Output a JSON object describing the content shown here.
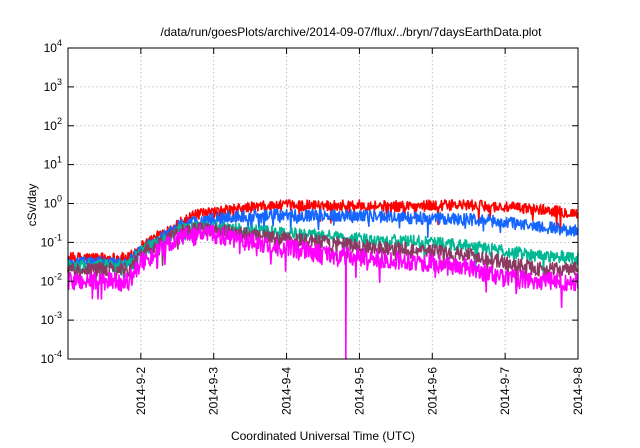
{
  "chart_data": {
    "type": "line",
    "title": "/data/run/goesPlots/archive/2014-09-07/flux/../bryn/7daysEarthData.plot",
    "xlabel": "Coordinated Universal Time (UTC)",
    "ylabel": "cSv/day",
    "y_scale": "log",
    "ylim": [
      0.0001,
      10000
    ],
    "xlim": [
      "2014-09-01T00:00",
      "2014-09-08T00:00"
    ],
    "x_tick_labels": [
      "2014-9-2",
      "2014-9-3",
      "2014-9-4",
      "2014-9-5",
      "2014-9-6",
      "2014-9-7",
      "2014-9-8"
    ],
    "x_tick_values": [
      "2014-09-02",
      "2014-09-03",
      "2014-09-04",
      "2014-09-05",
      "2014-09-06",
      "2014-09-07",
      "2014-09-08"
    ],
    "y_ticks": [
      {
        "value": 0.0001,
        "base": "10",
        "exp": "-4"
      },
      {
        "value": 0.001,
        "base": "10",
        "exp": "-3"
      },
      {
        "value": 0.01,
        "base": "10",
        "exp": "-2"
      },
      {
        "value": 0.1,
        "base": "10",
        "exp": "-1"
      },
      {
        "value": 1,
        "base": "10",
        "exp": "0"
      },
      {
        "value": 10,
        "base": "10",
        "exp": "1"
      },
      {
        "value": 100,
        "base": "10",
        "exp": "2"
      },
      {
        "value": 1000,
        "base": "10",
        "exp": "3"
      },
      {
        "value": 10000,
        "base": "10",
        "exp": "4"
      }
    ],
    "grid": true,
    "legend": "none",
    "series": [
      {
        "color": "#ff0000",
        "x": [
          "2014-09-01T00:00",
          "2014-09-01T12:00",
          "2014-09-01T20:00",
          "2014-09-02T00:00",
          "2014-09-02T06:00",
          "2014-09-02T12:00",
          "2014-09-02T18:00",
          "2014-09-03T00:00",
          "2014-09-03T06:00",
          "2014-09-03T12:00",
          "2014-09-04T00:00",
          "2014-09-04T12:00",
          "2014-09-05T00:00",
          "2014-09-05T12:00",
          "2014-09-06T00:00",
          "2014-09-06T12:00",
          "2014-09-07T00:00",
          "2014-09-07T12:00",
          "2014-09-08T00:00"
        ],
        "y": [
          0.04,
          0.04,
          0.04,
          0.08,
          0.15,
          0.3,
          0.5,
          0.6,
          0.7,
          0.8,
          0.9,
          0.9,
          0.9,
          0.85,
          0.9,
          0.9,
          0.8,
          0.7,
          0.55
        ]
      },
      {
        "color": "#1565ff",
        "x": [
          "2014-09-01T00:00",
          "2014-09-01T12:00",
          "2014-09-01T20:00",
          "2014-09-02T00:00",
          "2014-09-02T06:00",
          "2014-09-02T12:00",
          "2014-09-02T18:00",
          "2014-09-03T00:00",
          "2014-09-03T06:00",
          "2014-09-03T12:00",
          "2014-09-04T00:00",
          "2014-09-04T12:00",
          "2014-09-05T00:00",
          "2014-09-05T12:00",
          "2014-09-06T00:00",
          "2014-09-06T12:00",
          "2014-09-07T00:00",
          "2014-09-07T12:00",
          "2014-09-08T00:00"
        ],
        "y": [
          0.03,
          0.03,
          0.03,
          0.07,
          0.12,
          0.25,
          0.35,
          0.4,
          0.45,
          0.5,
          0.5,
          0.5,
          0.5,
          0.45,
          0.4,
          0.4,
          0.33,
          0.25,
          0.2
        ]
      },
      {
        "color": "#00b894",
        "x": [
          "2014-09-01T00:00",
          "2014-09-01T12:00",
          "2014-09-01T20:00",
          "2014-09-02T00:00",
          "2014-09-02T06:00",
          "2014-09-02T12:00",
          "2014-09-02T18:00",
          "2014-09-03T00:00",
          "2014-09-03T06:00",
          "2014-09-03T12:00",
          "2014-09-04T00:00",
          "2014-09-04T12:00",
          "2014-09-05T00:00",
          "2014-09-05T12:00",
          "2014-09-06T00:00",
          "2014-09-06T12:00",
          "2014-09-07T00:00",
          "2014-09-07T12:00",
          "2014-09-08T00:00"
        ],
        "y": [
          0.025,
          0.025,
          0.025,
          0.06,
          0.1,
          0.2,
          0.25,
          0.25,
          0.22,
          0.2,
          0.17,
          0.15,
          0.12,
          0.11,
          0.1,
          0.08,
          0.06,
          0.045,
          0.04
        ]
      },
      {
        "color": "#8b3a62",
        "x": [
          "2014-09-01T00:00",
          "2014-09-01T12:00",
          "2014-09-01T20:00",
          "2014-09-02T00:00",
          "2014-09-02T06:00",
          "2014-09-02T12:00",
          "2014-09-02T18:00",
          "2014-09-03T00:00",
          "2014-09-03T06:00",
          "2014-09-03T12:00",
          "2014-09-04T00:00",
          "2014-09-04T12:00",
          "2014-09-05T00:00",
          "2014-09-05T12:00",
          "2014-09-06T00:00",
          "2014-09-06T12:00",
          "2014-09-07T00:00",
          "2014-09-07T12:00",
          "2014-09-08T00:00"
        ],
        "y": [
          0.02,
          0.02,
          0.02,
          0.05,
          0.09,
          0.18,
          0.22,
          0.22,
          0.18,
          0.15,
          0.12,
          0.1,
          0.08,
          0.07,
          0.06,
          0.05,
          0.03,
          0.02,
          0.02
        ]
      },
      {
        "color": "#ff00ff",
        "x": [
          "2014-09-01T00:00",
          "2014-09-01T12:00",
          "2014-09-01T20:00",
          "2014-09-02T00:00",
          "2014-09-02T06:00",
          "2014-09-02T12:00",
          "2014-09-02T18:00",
          "2014-09-03T00:00",
          "2014-09-03T06:00",
          "2014-09-03T12:00",
          "2014-09-04T00:00",
          "2014-09-04T12:00",
          "2014-09-05T00:00",
          "2014-09-05T12:00",
          "2014-09-06T00:00",
          "2014-09-06T12:00",
          "2014-09-07T00:00",
          "2014-09-07T12:00",
          "2014-09-08T00:00"
        ],
        "y": [
          0.01,
          0.01,
          0.01,
          0.03,
          0.06,
          0.12,
          0.18,
          0.16,
          0.12,
          0.1,
          0.07,
          0.05,
          0.04,
          0.035,
          0.03,
          0.022,
          0.012,
          0.01,
          0.01
        ]
      }
    ],
    "annotations": [
      {
        "series": 4,
        "x": "2014-09-04T19:30",
        "y": 0.0001,
        "note": "drop"
      }
    ]
  }
}
